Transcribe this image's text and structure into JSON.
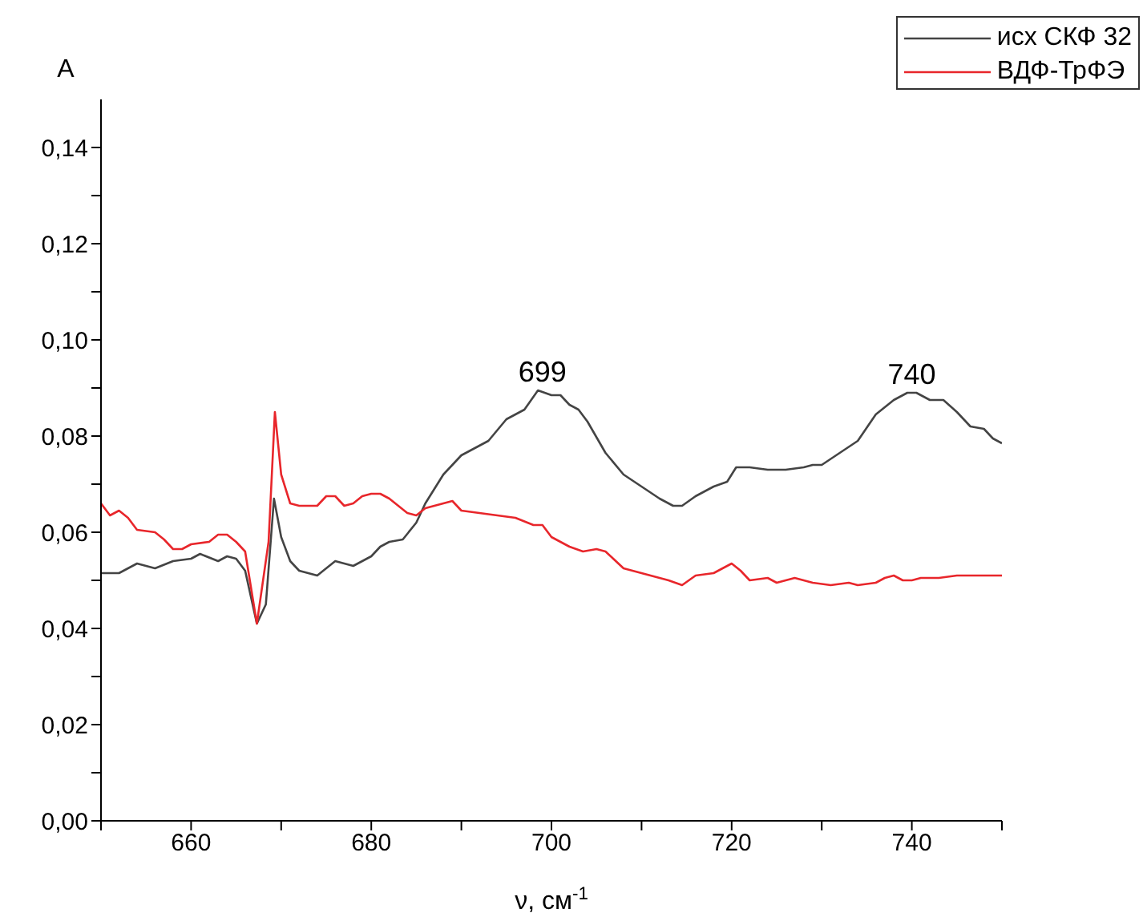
{
  "chart_data": {
    "type": "line",
    "xlabel": "ν, см$^{-1}$",
    "ylabel": "A",
    "xlim": [
      650,
      750
    ],
    "xticks": [
      {
        "value": 650,
        "label": null
      },
      660,
      {
        "value": 670,
        "label": null
      },
      680,
      {
        "value": 690,
        "label": null
      },
      700,
      {
        "value": 710,
        "label": null
      },
      720,
      {
        "value": 730,
        "label": null
      },
      740,
      {
        "value": 750,
        "label": null
      }
    ],
    "ylim": [
      0,
      0.15
    ],
    "yticks": [
      {
        "value": 0,
        "label": "0,00"
      },
      {
        "value": 0.01,
        "label": null
      },
      {
        "value": 0.02,
        "label": "0,02"
      },
      {
        "value": 0.03,
        "label": null
      },
      {
        "value": 0.04,
        "label": "0,04"
      },
      {
        "value": 0.05,
        "label": null
      },
      {
        "value": 0.06,
        "label": "0,06"
      },
      {
        "value": 0.07,
        "label": null
      },
      {
        "value": 0.08,
        "label": "0,08"
      },
      {
        "value": 0.09,
        "label": null
      },
      {
        "value": 0.1,
        "label": "0,10"
      },
      {
        "value": 0.11,
        "label": null
      },
      {
        "value": 0.12,
        "label": "0,12"
      },
      {
        "value": 0.13,
        "label": null
      },
      {
        "value": 0.14,
        "label": "0,14"
      }
    ],
    "legend": "top right",
    "marker": "none",
    "line_style": "solid",
    "annotations": [
      {
        "text": "699",
        "x": 699,
        "y": 0.09
      },
      {
        "text": "740",
        "x": 740,
        "y": 0.0895
      }
    ],
    "series": [
      {
        "name": "исх СКФ 32",
        "color": "#444444",
        "x": [
          650,
          652,
          654,
          656,
          658,
          660,
          661,
          663,
          664,
          665,
          666,
          667.3,
          668.3,
          669.2,
          670,
          671,
          672,
          674,
          676,
          678,
          680,
          681,
          682,
          683.5,
          685,
          686,
          688,
          690,
          692,
          693,
          695,
          697,
          698.5,
          700,
          701,
          702,
          703,
          704,
          706,
          708,
          710,
          712,
          713.5,
          714.5,
          716,
          718,
          719.5,
          720.5,
          722,
          724,
          726,
          728,
          729,
          730,
          732,
          734,
          736,
          738,
          739.5,
          740.5,
          742,
          743.5,
          745,
          746.5,
          748,
          749,
          750
        ],
        "values": [
          0.0515,
          0.0515,
          0.0535,
          0.0525,
          0.054,
          0.0545,
          0.0555,
          0.054,
          0.055,
          0.0545,
          0.052,
          0.041,
          0.045,
          0.067,
          0.059,
          0.054,
          0.052,
          0.051,
          0.054,
          0.053,
          0.055,
          0.057,
          0.058,
          0.0585,
          0.062,
          0.066,
          0.072,
          0.076,
          0.078,
          0.079,
          0.0835,
          0.0855,
          0.0895,
          0.0885,
          0.0885,
          0.0865,
          0.0855,
          0.083,
          0.0765,
          0.072,
          0.0695,
          0.067,
          0.0655,
          0.0655,
          0.0675,
          0.0695,
          0.0705,
          0.0735,
          0.0735,
          0.073,
          0.073,
          0.0735,
          0.074,
          0.074,
          0.0765,
          0.079,
          0.0845,
          0.0875,
          0.089,
          0.089,
          0.0875,
          0.0875,
          0.085,
          0.082,
          0.0815,
          0.0795,
          0.0785
        ]
      },
      {
        "name": "ВДФ-ТрФЭ",
        "color": "#e8262b",
        "x": [
          650,
          651,
          652,
          653,
          654,
          656,
          657,
          658,
          659,
          660,
          662,
          663,
          664,
          665,
          666,
          667.3,
          668.6,
          669.3,
          670,
          671,
          672,
          674,
          675,
          676,
          677,
          678,
          679,
          680,
          681,
          682,
          684,
          685,
          686,
          688,
          689,
          690,
          692,
          694,
          696,
          698,
          699,
          700,
          702,
          703.5,
          705,
          706,
          708,
          710,
          712,
          713,
          714.5,
          716,
          718,
          720,
          721,
          722,
          724,
          725,
          727,
          729,
          731,
          733,
          734,
          736,
          737,
          738,
          739,
          740,
          741,
          743,
          745,
          750
        ],
        "values": [
          0.066,
          0.0635,
          0.0645,
          0.063,
          0.0605,
          0.06,
          0.0585,
          0.0565,
          0.0565,
          0.0575,
          0.058,
          0.0595,
          0.0595,
          0.058,
          0.056,
          0.041,
          0.058,
          0.085,
          0.072,
          0.066,
          0.0655,
          0.0655,
          0.0675,
          0.0675,
          0.0655,
          0.066,
          0.0675,
          0.068,
          0.068,
          0.067,
          0.064,
          0.0635,
          0.065,
          0.066,
          0.0665,
          0.0645,
          0.064,
          0.0635,
          0.063,
          0.0615,
          0.0615,
          0.059,
          0.057,
          0.056,
          0.0565,
          0.056,
          0.0525,
          0.0515,
          0.0505,
          0.05,
          0.049,
          0.051,
          0.0515,
          0.0535,
          0.052,
          0.05,
          0.0505,
          0.0495,
          0.0505,
          0.0495,
          0.049,
          0.0495,
          0.049,
          0.0495,
          0.0505,
          0.051,
          0.05,
          0.05,
          0.0505,
          0.0505,
          0.051,
          0.051
        ]
      }
    ]
  }
}
